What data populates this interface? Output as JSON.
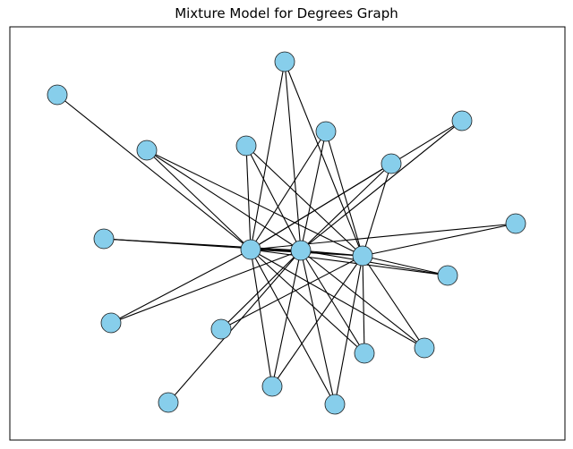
{
  "figure": {
    "title": "Mixture Model for Degrees Graph"
  },
  "colors": {
    "node_fill": "#87CEEB",
    "node_stroke": "#1a1a1a",
    "edge": "#000000",
    "frame": "#000000"
  },
  "graph": {
    "nodes": [
      {
        "id": "hub-a",
        "role": "hub"
      },
      {
        "id": "hub-b",
        "role": "hub"
      },
      {
        "id": "hub-c",
        "role": "hub"
      },
      {
        "id": "n1"
      },
      {
        "id": "n2"
      },
      {
        "id": "n3"
      },
      {
        "id": "n4"
      },
      {
        "id": "n5"
      },
      {
        "id": "n6"
      },
      {
        "id": "n7"
      },
      {
        "id": "n8"
      },
      {
        "id": "n9"
      },
      {
        "id": "n10"
      },
      {
        "id": "n11"
      },
      {
        "id": "n12"
      },
      {
        "id": "n13"
      },
      {
        "id": "n14"
      },
      {
        "id": "n15"
      },
      {
        "id": "n16"
      },
      {
        "id": "n17"
      }
    ],
    "edges": [
      [
        "hub-a",
        "hub-b"
      ],
      [
        "hub-a",
        "hub-c"
      ],
      [
        "hub-b",
        "hub-c"
      ],
      [
        "hub-a",
        "n1"
      ],
      [
        "hub-a",
        "n2"
      ],
      [
        "hub-a",
        "n3"
      ],
      [
        "hub-a",
        "n4"
      ],
      [
        "hub-a",
        "n5"
      ],
      [
        "hub-a",
        "n6"
      ],
      [
        "hub-a",
        "n7"
      ],
      [
        "hub-a",
        "n8"
      ],
      [
        "hub-a",
        "n9"
      ],
      [
        "hub-a",
        "n10"
      ],
      [
        "hub-a",
        "n11"
      ],
      [
        "hub-a",
        "n12"
      ],
      [
        "hub-a",
        "n13"
      ],
      [
        "hub-a",
        "n15"
      ],
      [
        "hub-b",
        "n2"
      ],
      [
        "hub-b",
        "n3"
      ],
      [
        "hub-b",
        "n4"
      ],
      [
        "hub-b",
        "n5"
      ],
      [
        "hub-b",
        "n6"
      ],
      [
        "hub-b",
        "n7"
      ],
      [
        "hub-b",
        "n9"
      ],
      [
        "hub-b",
        "n10"
      ],
      [
        "hub-b",
        "n11"
      ],
      [
        "hub-b",
        "n12"
      ],
      [
        "hub-b",
        "n13"
      ],
      [
        "hub-b",
        "n14"
      ],
      [
        "hub-b",
        "n15"
      ],
      [
        "hub-b",
        "n16"
      ],
      [
        "hub-b",
        "n17"
      ],
      [
        "hub-c",
        "n2"
      ],
      [
        "hub-c",
        "n3"
      ],
      [
        "hub-c",
        "n4"
      ],
      [
        "hub-c",
        "n5"
      ],
      [
        "hub-c",
        "n6"
      ],
      [
        "hub-c",
        "n8"
      ],
      [
        "hub-c",
        "n9"
      ],
      [
        "hub-c",
        "n10"
      ],
      [
        "hub-c",
        "n11"
      ],
      [
        "hub-c",
        "n12"
      ],
      [
        "hub-c",
        "n13"
      ],
      [
        "hub-c",
        "n16"
      ],
      [
        "hub-c",
        "n17"
      ]
    ]
  }
}
